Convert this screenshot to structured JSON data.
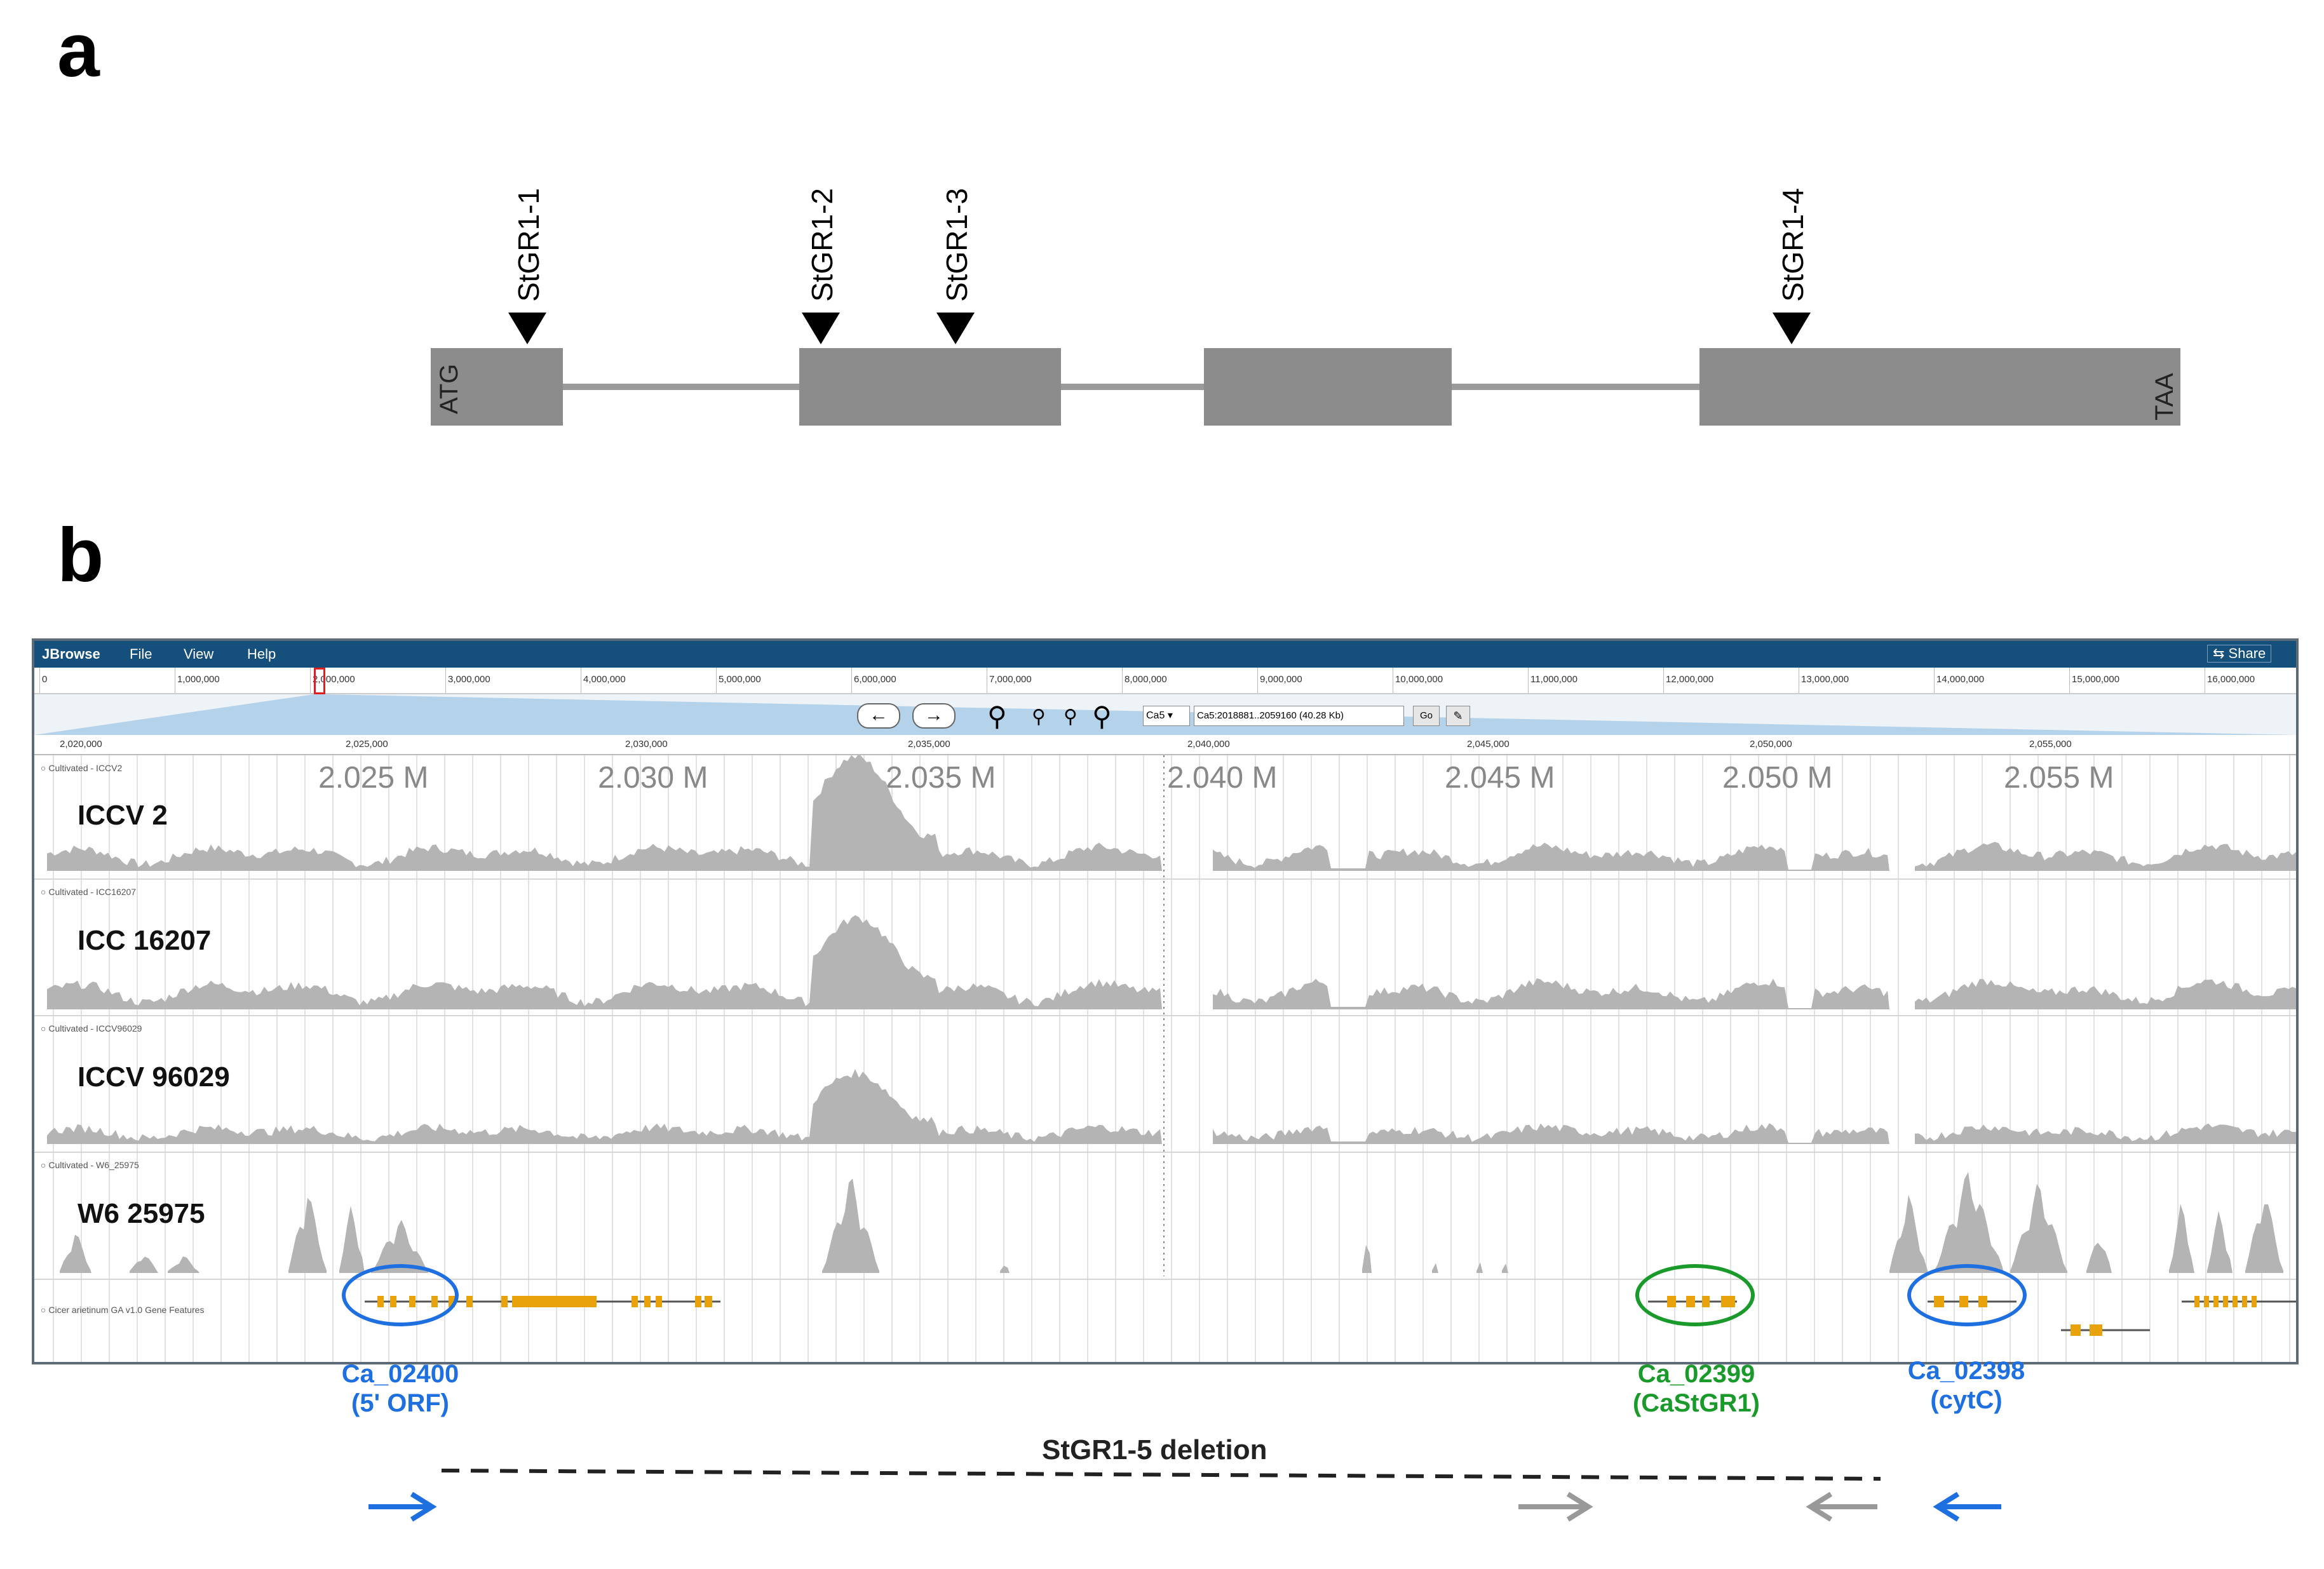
{
  "panel_a": {
    "letter": "a",
    "start_label": "ATG",
    "stop_label": "TAA",
    "sites": [
      "StGR1-1",
      "StGR1-2",
      "StGR1-3",
      "StGR1-4"
    ]
  },
  "panel_b": {
    "letter": "b",
    "menubar": {
      "app": "JBrowse",
      "file": "File",
      "view": "View",
      "help": "Help",
      "share": "Share"
    },
    "overview_ticks": [
      "0",
      "1,000,000",
      "2,000,000",
      "3,000,000",
      "4,000,000",
      "5,000,000",
      "6,000,000",
      "7,000,000",
      "8,000,000",
      "9,000,000",
      "10,000,000",
      "11,000,000",
      "12,000,000",
      "13,000,000",
      "14,000,000",
      "15,000,000",
      "16,000,000"
    ],
    "detail_ticks": [
      "2,020,000",
      "2,025,000",
      "2,030,000",
      "2,035,000",
      "2,040,000",
      "2,045,000",
      "2,050,000",
      "2,055,000"
    ],
    "location_box": "Ca5:2018881..2059160 (40.28 Kb)",
    "chrom_select": "Ca5",
    "go_label": "Go",
    "position_labels": [
      "2.025 M",
      "2.030 M",
      "2.035 M",
      "2.040 M",
      "2.045 M",
      "2.050 M",
      "2.055 M"
    ],
    "tracks": [
      {
        "small_label": "Cultivated - ICCV2",
        "name": "ICCV 2"
      },
      {
        "small_label": "Cultivated - ICC16207",
        "name": "ICC 16207"
      },
      {
        "small_label": "Cultivated - ICCV96029",
        "name": "ICCV 96029"
      },
      {
        "small_label": "Cultivated - W6_25975",
        "name": "W6 25975"
      }
    ],
    "gene_track_label": "Cicer arietinum GA v1.0 Gene Features",
    "genes": [
      {
        "id": "Ca_02400",
        "note": "(5' ORF)",
        "color": "#1e6fe0"
      },
      {
        "id": "Ca_02399",
        "note": "(CaStGR1)",
        "color": "#1a9a2a"
      },
      {
        "id": "Ca_02398",
        "note": "(cytC)",
        "color": "#1e6fe0"
      }
    ],
    "deletion_label": "StGR1-5 deletion",
    "colors": {
      "blue": "#1e6fe0",
      "green": "#1a9a2a",
      "gray": "#8c8c8c",
      "gene_orange": "#e8a30c",
      "coverage": "#b4b4b4"
    }
  }
}
